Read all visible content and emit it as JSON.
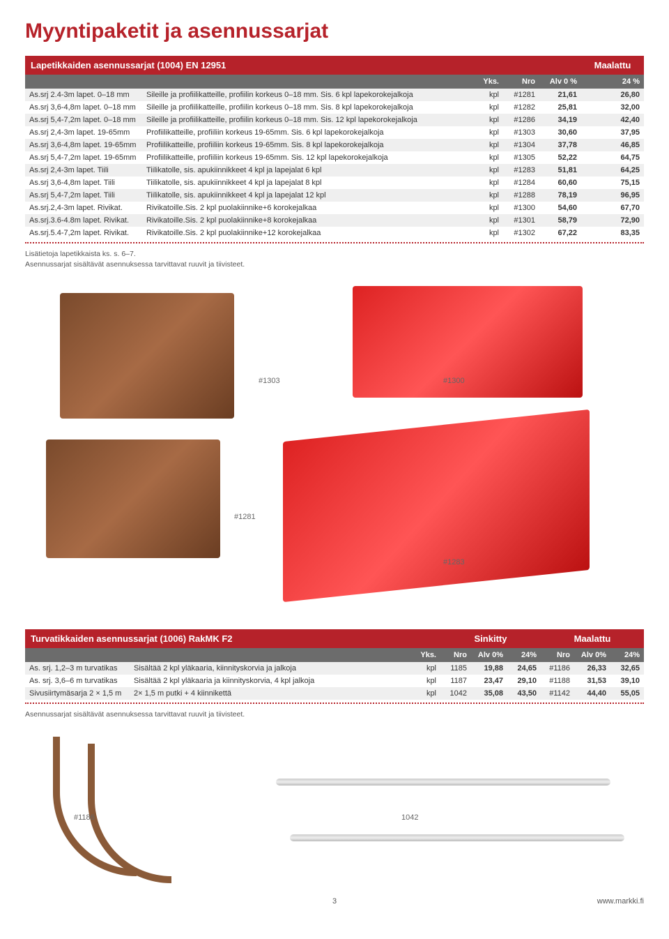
{
  "page_title": "Myyntipaketit ja asennussarjat",
  "table1": {
    "title": "Lapetikkaiden asennussarjat (1004) EN 12951",
    "badge": "Maalattu",
    "head": [
      "",
      "",
      "Yks.",
      "Nro",
      "Alv 0 %",
      "24 %"
    ],
    "rows": [
      {
        "c": [
          "As.srj 2.4-3m lapet. 0–18 mm",
          "Sileille ja profiilikatteille, profiilin korkeus 0–18 mm. Sis. 6 kpl lapekorokejalkoja",
          "kpl",
          "#1281",
          "21,61",
          "26,80"
        ]
      },
      {
        "c": [
          "As.srj 3,6-4,8m lapet. 0–18 mm",
          "Sileille ja profiilikatteille, profiilin korkeus 0–18 mm. Sis. 8 kpl lapekorokejalkoja",
          "kpl",
          "#1282",
          "25,81",
          "32,00"
        ]
      },
      {
        "c": [
          "As.srj 5,4-7,2m lapet. 0–18 mm",
          "Sileille ja profiilikatteille, profiilin korkeus 0–18 mm. Sis. 12 kpl lapekorokejalkoja",
          "kpl",
          "#1286",
          "34,19",
          "42,40"
        ]
      },
      {
        "c": [
          "As.srj 2,4-3m lapet. 19-65mm",
          "Profiilikatteille, profiiliin korkeus 19-65mm. Sis. 6 kpl lapekorokejalkoja",
          "kpl",
          "#1303",
          "30,60",
          "37,95"
        ]
      },
      {
        "c": [
          "As.srj 3,6-4,8m lapet. 19-65mm",
          "Profiilikatteille, profiiliin korkeus 19-65mm. Sis. 8 kpl lapekorokejalkoja",
          "kpl",
          "#1304",
          "37,78",
          "46,85"
        ]
      },
      {
        "c": [
          "As.srj 5,4-7,2m lapet. 19-65mm",
          "Profiilikatteille, profiiliin korkeus 19-65mm. Sis. 12 kpl lapekorokejalkoja",
          "kpl",
          "#1305",
          "52,22",
          "64,75"
        ]
      },
      {
        "c": [
          "As.srj 2,4-3m lapet. Tiili",
          "Tiilikatolle, sis. apukiinnikkeet 4 kpl ja lapejalat 6 kpl",
          "kpl",
          "#1283",
          "51,81",
          "64,25"
        ]
      },
      {
        "c": [
          "As.srj 3,6-4,8m lapet. Tiili",
          "Tiilikatolle, sis. apukiinnikkeet 4 kpl ja lapejalat 8 kpl",
          "kpl",
          "#1284",
          "60,60",
          "75,15"
        ]
      },
      {
        "c": [
          "As.srj 5,4-7,2m lapet. Tiili",
          "Tiilikatolle, sis. apukiinnikkeet 4 kpl ja lapejalat 12 kpl",
          "kpl",
          "#1288",
          "78,19",
          "96,95"
        ]
      },
      {
        "c": [
          "As.srj.2,4-3m lapet. Rivikat.",
          "Rivikatoille.Sis. 2 kpl puolakiinnike+6 korokejalkaa",
          "kpl",
          "#1300",
          "54,60",
          "67,70"
        ]
      },
      {
        "c": [
          "As.srj.3.6-4.8m lapet. Rivikat.",
          "Rivikatoille.Sis. 2 kpl puolakiinnike+8 korokejalkaa",
          "kpl",
          "#1301",
          "58,79",
          "72,90"
        ]
      },
      {
        "c": [
          "As.srj.5.4-7,2m lapet. Rivikat.",
          "Rivikatoille.Sis. 2 kpl puolakiinnike+12 korokejalkaa",
          "kpl",
          "#1302",
          "67,22",
          "83,35"
        ]
      }
    ],
    "note1": "Lisätietoja lapetikkaista ks. s. 6–7.",
    "note2": "Asennussarjat sisältävät asennuksessa tarvittavat ruuvit ja tiivisteet."
  },
  "img_labels": {
    "a": "#1303",
    "b": "#1300",
    "c": "#1281",
    "d": "#1283"
  },
  "table2": {
    "title": "Turvatikkaiden asennussarjat (1006) RakMK F2",
    "badges": [
      "Sinkitty",
      "Maalattu"
    ],
    "head": [
      "",
      "",
      "Yks.",
      "Nro",
      "Alv 0%",
      "24%",
      "Nro",
      "Alv 0%",
      "24%"
    ],
    "rows": [
      {
        "c": [
          "As. srj. 1,2–3 m turvatikas",
          "Sisältää 2 kpl yläkaaria, kiinnityskorvia ja jalkoja",
          "kpl",
          "1185",
          "19,88",
          "24,65",
          "#1186",
          "26,33",
          "32,65"
        ]
      },
      {
        "c": [
          "As. srj. 3,6–6 m turvatikas",
          "Sisältää 2 kpl yläkaaria ja kiinnityskorvia, 4 kpl jalkoja",
          "kpl",
          "1187",
          "23,47",
          "29,10",
          "#1188",
          "31,53",
          "39,10"
        ]
      },
      {
        "c": [
          "Sivusiirtymäsarja 2 × 1,5 m",
          "2× 1,5 m putki + 4 kiinnikettä",
          "kpl",
          "1042",
          "35,08",
          "43,50",
          "#1142",
          "44,40",
          "55,05"
        ]
      }
    ],
    "note": "Asennussarjat sisältävät asennuksessa tarvittavat ruuvit ja tiivisteet."
  },
  "img_labels2": {
    "a": "#1186",
    "b": "1042"
  },
  "footer": {
    "page": "3",
    "url": "www.markki.fi"
  }
}
